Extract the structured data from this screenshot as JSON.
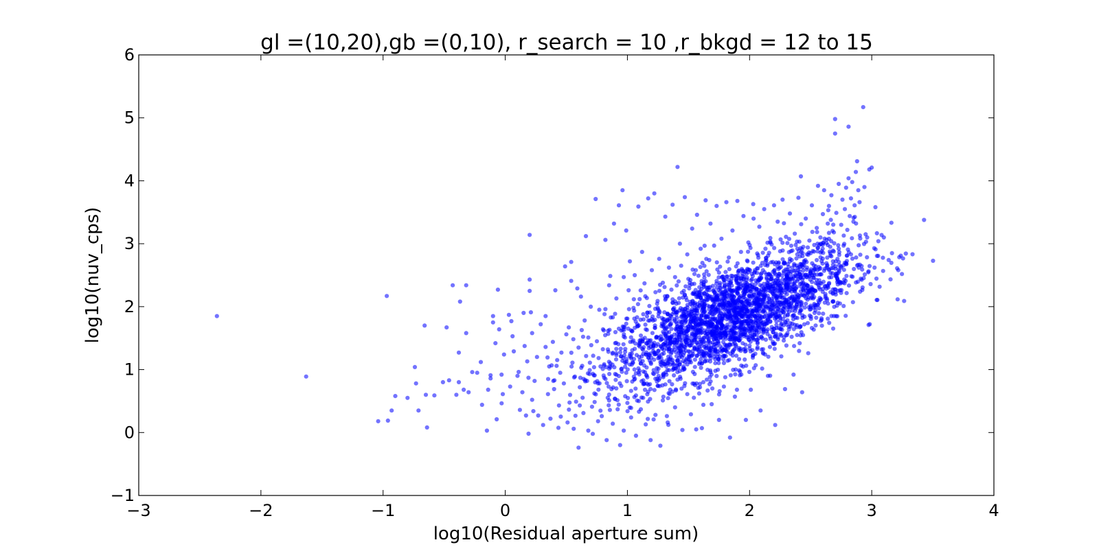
{
  "chart_data": {
    "type": "scatter",
    "title": "gl =(10,20),gb =(0,10), r_search = 10 ,r_bkgd = 12 to 15",
    "xlabel": "log10(Residual aperture sum)",
    "ylabel": "log10(nuv_cps)",
    "xlim": [
      -3,
      4
    ],
    "ylim": [
      -1,
      6
    ],
    "xticks": [
      -3,
      -2,
      -1,
      0,
      1,
      2,
      3,
      4
    ],
    "yticks": [
      -1,
      0,
      1,
      2,
      3,
      4,
      5,
      6
    ],
    "xtick_labels": [
      "−3",
      "−2",
      "−1",
      "0",
      "1",
      "2",
      "3",
      "4"
    ],
    "ytick_labels": [
      "−1",
      "0",
      "1",
      "2",
      "3",
      "4",
      "5",
      "6"
    ],
    "grid": false,
    "legend": "none",
    "marker_color": "#0000ff",
    "marker_alpha": 0.55,
    "points": [
      [
        -2.36,
        1.85
      ],
      [
        -1.63,
        0.89
      ],
      [
        -1.04,
        0.18
      ],
      [
        -0.97,
        2.17
      ],
      [
        -0.96,
        0.19
      ],
      [
        -0.93,
        0.35
      ],
      [
        -0.9,
        0.58
      ],
      [
        -0.8,
        0.55
      ],
      [
        -0.74,
        1.04
      ],
      [
        -0.73,
        0.78
      ],
      [
        -0.71,
        0.35
      ],
      [
        -0.66,
        1.7
      ],
      [
        -0.65,
        0.6
      ],
      [
        -0.64,
        0.08
      ],
      [
        -0.58,
        0.59
      ],
      [
        -0.51,
        0.8
      ],
      [
        -0.48,
        1.67
      ],
      [
        -0.46,
        0.83
      ],
      [
        -0.43,
        2.34
      ],
      [
        -0.4,
        0.6
      ],
      [
        -0.38,
        1.27
      ],
      [
        -0.38,
        0.8
      ],
      [
        -0.37,
        2.08
      ],
      [
        -0.34,
        0.68
      ],
      [
        -0.32,
        1.58
      ],
      [
        -0.32,
        2.34
      ],
      [
        -0.3,
        0.64
      ],
      [
        -0.27,
        0.96
      ],
      [
        -0.23,
        0.95
      ],
      [
        -0.2,
        1.12
      ],
      [
        -0.19,
        0.44
      ],
      [
        -0.15,
        0.03
      ],
      [
        -0.14,
        0.68
      ],
      [
        -0.12,
        0.91
      ],
      [
        -0.12,
        0.86
      ],
      [
        -0.1,
        1.85
      ],
      [
        -0.1,
        1.75
      ],
      [
        -0.08,
        1.42
      ],
      [
        -0.07,
        0.21
      ],
      [
        -0.06,
        2.27
      ],
      [
        -0.05,
        1.64
      ],
      [
        -0.03,
        0.92
      ],
      [
        -0.02,
        0.61
      ],
      [
        -0.01,
        1.24
      ],
      [
        0.03,
        1.87
      ],
      [
        0.05,
        1.77
      ],
      [
        0.04,
        0.73
      ],
      [
        0.06,
        1.53
      ],
      [
        0.07,
        1.29
      ],
      [
        0.1,
        0.9
      ],
      [
        0.12,
        0.36
      ],
      [
        0.14,
        0.64
      ],
      [
        0.15,
        1.9
      ],
      [
        0.17,
        0.27
      ],
      [
        0.18,
        1.13
      ],
      [
        0.19,
        0.87
      ],
      [
        0.2,
        3.14
      ],
      [
        0.2,
        2.43
      ],
      [
        0.2,
        2.25
      ],
      [
        0.21,
        1.91
      ],
      [
        0.22,
        1.58
      ],
      [
        0.22,
        0.52
      ],
      [
        0.23,
        0.34
      ],
      [
        0.24,
        0.82
      ],
      [
        0.26,
        1.2
      ],
      [
        0.27,
        0.27
      ],
      [
        0.29,
        1.72
      ],
      [
        0.31,
        0.12
      ],
      [
        0.33,
        1.36
      ],
      [
        0.33,
        1.85
      ],
      [
        0.35,
        0.61
      ],
      [
        0.36,
        1.05
      ],
      [
        0.37,
        0.22
      ],
      [
        0.39,
        1.44
      ],
      [
        0.4,
        0.69
      ],
      [
        0.41,
        2.26
      ],
      [
        0.42,
        1.06
      ],
      [
        0.44,
        0.43
      ],
      [
        0.45,
        0.95
      ],
      [
        0.46,
        1.27
      ],
      [
        0.48,
        0.78
      ],
      [
        0.49,
        2.64
      ],
      [
        0.5,
        1.56
      ],
      [
        0.51,
        0.16
      ],
      [
        0.52,
        1.67
      ],
      [
        0.54,
        2.41
      ],
      [
        0.54,
        2.71
      ],
      [
        0.55,
        1.11
      ],
      [
        0.56,
        0.06
      ],
      [
        0.57,
        0.89
      ],
      [
        0.58,
        0.49
      ],
      [
        0.59,
        2.29
      ],
      [
        0.6,
        1.35
      ],
      [
        0.6,
        -0.24
      ],
      [
        0.61,
        0.72
      ],
      [
        0.62,
        2.16
      ],
      [
        0.63,
        1.06
      ],
      [
        0.64,
        0.31
      ],
      [
        0.65,
        1.78
      ],
      [
        0.66,
        3.12
      ],
      [
        0.67,
        0.82
      ],
      [
        0.68,
        1.51
      ],
      [
        0.68,
        0.03
      ],
      [
        0.69,
        0.93
      ],
      [
        0.7,
        2.0
      ],
      [
        0.71,
        0.41
      ],
      [
        0.72,
        1.22
      ],
      [
        0.73,
        0.62
      ],
      [
        0.74,
        3.71
      ],
      [
        0.75,
        1.45
      ],
      [
        0.76,
        0.18
      ],
      [
        0.76,
        0.78
      ],
      [
        0.77,
        1.95
      ],
      [
        0.78,
        1.05
      ],
      [
        0.79,
        0.26
      ],
      [
        0.8,
        1.64
      ],
      [
        0.81,
        0.87
      ],
      [
        0.82,
        3.06
      ],
      [
        0.82,
        1.96
      ],
      [
        0.83,
        -0.12
      ],
      [
        0.84,
        1.32
      ],
      [
        0.85,
        0.51
      ],
      [
        0.85,
        2.34
      ],
      [
        0.86,
        1.1
      ],
      [
        0.87,
        0.69
      ],
      [
        0.88,
        1.83
      ],
      [
        0.88,
        0.14
      ],
      [
        0.89,
        3.32
      ],
      [
        0.9,
        1.42
      ],
      [
        0.9,
        0.93
      ],
      [
        0.91,
        2.13
      ],
      [
        0.92,
        0.37
      ],
      [
        0.93,
        1.65
      ],
      [
        0.93,
        3.61
      ],
      [
        0.94,
        -0.2
      ],
      [
        0.95,
        1.21
      ],
      [
        0.95,
        0.74
      ],
      [
        0.96,
        3.85
      ],
      [
        0.97,
        2.47
      ],
      [
        0.97,
        0.03
      ],
      [
        0.98,
        1.51
      ],
      [
        0.99,
        0.95
      ],
      [
        0.99,
        3.21
      ],
      [
        1.0,
        1.81
      ],
      [
        1.0,
        0.47
      ],
      [
        1.01,
        2.26
      ],
      [
        1.02,
        1.08
      ],
      [
        1.02,
        2.72
      ],
      [
        1.03,
        0.24
      ],
      [
        1.04,
        1.61
      ],
      [
        1.04,
        0.81
      ],
      [
        1.05,
        1.98
      ],
      [
        1.06,
        1.33
      ],
      [
        1.06,
        2.5
      ],
      [
        1.07,
        -0.05
      ],
      [
        1.07,
        0.59
      ],
      [
        1.08,
        1.72
      ],
      [
        1.09,
        3.59
      ],
      [
        1.09,
        1.02
      ],
      [
        1.1,
        2.12
      ],
      [
        1.11,
        0.37
      ],
      [
        1.11,
        1.47
      ],
      [
        1.12,
        2.87
      ],
      [
        1.13,
        0.83
      ],
      [
        1.13,
        1.88
      ],
      [
        1.14,
        2.37
      ],
      [
        1.15,
        0.13
      ],
      [
        1.15,
        1.24
      ],
      [
        1.16,
        1.63
      ],
      [
        1.17,
        0.65
      ],
      [
        1.17,
        3.72
      ],
      [
        1.18,
        2.01
      ],
      [
        1.19,
        -0.12
      ],
      [
        1.19,
        1.36
      ],
      [
        1.2,
        2.58
      ],
      [
        1.21,
        0.94
      ],
      [
        1.21,
        1.78
      ],
      [
        1.22,
        3.8
      ],
      [
        1.23,
        0.28
      ],
      [
        1.23,
        2.23
      ],
      [
        1.24,
        1.52
      ],
      [
        1.25,
        0.74
      ],
      [
        1.25,
        1.96
      ],
      [
        1.26,
        2.76
      ],
      [
        1.27,
        1.12
      ],
      [
        1.27,
        -0.21
      ],
      [
        1.28,
        1.69
      ],
      [
        1.29,
        2.38
      ],
      [
        1.29,
        0.51
      ],
      [
        1.3,
        1.31
      ],
      [
        1.31,
        3.43
      ],
      [
        1.31,
        2.11
      ],
      [
        1.32,
        0.92
      ],
      [
        1.33,
        1.8
      ],
      [
        1.33,
        0.16
      ],
      [
        1.34,
        2.62
      ],
      [
        1.35,
        1.46
      ],
      [
        1.35,
        0.68
      ],
      [
        1.36,
        2.27
      ],
      [
        1.37,
        3.62
      ],
      [
        1.37,
        1.15
      ],
      [
        1.38,
        1.91
      ],
      [
        1.39,
        0.4
      ],
      [
        1.39,
        2.47
      ],
      [
        1.4,
        1.63
      ],
      [
        1.41,
        4.22
      ],
      [
        1.41,
        0.84
      ],
      [
        1.42,
        2.06
      ],
      [
        1.43,
        1.29
      ],
      [
        1.43,
        3.0
      ],
      [
        1.44,
        2.65
      ],
      [
        1.45,
        0.04
      ],
      [
        1.45,
        1.76
      ],
      [
        1.46,
        1.05
      ],
      [
        1.47,
        3.74
      ],
      [
        1.47,
        2.19
      ],
      [
        1.48,
        1.48
      ],
      [
        1.49,
        0.61
      ],
      [
        1.49,
        2.83
      ],
      [
        1.5,
        1.9
      ],
      [
        1.51,
        1.21
      ],
      [
        1.51,
        2.38
      ],
      [
        1.52,
        0.29
      ],
      [
        1.53,
        1.67
      ],
      [
        1.53,
        3.24
      ],
      [
        1.54,
        2.05
      ],
      [
        1.55,
        0.93
      ],
      [
        1.55,
        1.54
      ],
      [
        1.56,
        2.58
      ],
      [
        1.57,
        1.33
      ],
      [
        1.57,
        3.46
      ],
      [
        1.58,
        0.71
      ],
      [
        1.59,
        2.22
      ],
      [
        1.59,
        1.81
      ],
      [
        1.6,
        2.92
      ],
      [
        1.61,
        1.1
      ],
      [
        1.61,
        0.07
      ],
      [
        1.62,
        1.97
      ],
      [
        1.63,
        2.46
      ],
      [
        1.63,
        1.44
      ],
      [
        1.64,
        3.69
      ],
      [
        1.65,
        0.84
      ],
      [
        1.65,
        2.1
      ],
      [
        1.66,
        1.65
      ],
      [
        1.67,
        2.74
      ],
      [
        1.67,
        1.22
      ],
      [
        1.68,
        3.32
      ],
      [
        1.69,
        0.45
      ],
      [
        1.69,
        1.89
      ],
      [
        1.7,
        2.33
      ],
      [
        1.71,
        1.55
      ],
      [
        1.71,
        2.97
      ],
      [
        1.72,
        0.98
      ],
      [
        1.73,
        2.14
      ],
      [
        1.73,
        3.6
      ],
      [
        1.74,
        1.73
      ],
      [
        1.75,
        2.54
      ],
      [
        1.75,
        0.2
      ],
      [
        1.76,
        1.37
      ],
      [
        1.77,
        2.03
      ],
      [
        1.77,
        3.08
      ],
      [
        1.78,
        1.85
      ],
      [
        1.79,
        0.73
      ],
      [
        1.79,
        2.42
      ],
      [
        1.8,
        1.58
      ],
      [
        1.81,
        3.66
      ],
      [
        1.81,
        2.21
      ],
      [
        1.82,
        1.14
      ],
      [
        1.83,
        2.78
      ],
      [
        1.83,
        1.94
      ],
      [
        1.84,
        -0.08
      ],
      [
        1.85,
        1.69
      ],
      [
        1.85,
        2.49
      ],
      [
        1.86,
        3.21
      ],
      [
        1.87,
        1.31
      ],
      [
        1.87,
        2.08
      ],
      [
        1.88,
        0.57
      ],
      [
        1.89,
        1.82
      ],
      [
        1.89,
        2.64
      ],
      [
        1.9,
        3.68
      ],
      [
        1.91,
        1.49
      ],
      [
        1.91,
        2.29
      ],
      [
        1.92,
        0.91
      ],
      [
        1.93,
        1.98
      ],
      [
        1.93,
        2.87
      ],
      [
        1.94,
        1.62
      ],
      [
        1.95,
        2.44
      ],
      [
        1.95,
        3.44
      ],
      [
        1.96,
        1.16
      ],
      [
        1.97,
        2.12
      ],
      [
        1.97,
        0.2
      ],
      [
        1.98,
        1.77
      ],
      [
        1.99,
        2.55
      ],
      [
        1.99,
        3.02
      ],
      [
        2.0,
        1.38
      ],
      [
        2.01,
        2.24
      ],
      [
        2.01,
        0.68
      ],
      [
        2.02,
        1.91
      ],
      [
        2.03,
        2.7
      ],
      [
        2.03,
        3.63
      ],
      [
        2.04,
        1.55
      ],
      [
        2.05,
        2.36
      ],
      [
        2.05,
        1.07
      ],
      [
        2.06,
        2.05
      ],
      [
        2.07,
        2.82
      ],
      [
        2.07,
        1.69
      ],
      [
        2.08,
        3.27
      ],
      [
        2.09,
        2.18
      ],
      [
        2.09,
        0.35
      ],
      [
        2.1,
        1.84
      ],
      [
        2.11,
        2.58
      ],
      [
        2.11,
        1.27
      ],
      [
        2.12,
        3.55
      ],
      [
        2.13,
        2.0
      ],
      [
        2.13,
        2.92
      ],
      [
        2.14,
        1.61
      ],
      [
        2.15,
        2.31
      ],
      [
        2.15,
        0.9
      ],
      [
        2.16,
        2.12
      ],
      [
        2.17,
        3.09
      ],
      [
        2.17,
        1.76
      ],
      [
        2.18,
        2.48
      ],
      [
        2.19,
        2.71
      ],
      [
        2.19,
        1.44
      ],
      [
        2.2,
        3.61
      ],
      [
        2.21,
        2.22
      ],
      [
        2.21,
        0.12
      ],
      [
        2.22,
        1.92
      ],
      [
        2.23,
        2.63
      ],
      [
        2.23,
        3.35
      ],
      [
        2.24,
        1.66
      ],
      [
        2.25,
        2.38
      ],
      [
        2.25,
        2.88
      ],
      [
        2.26,
        1.21
      ],
      [
        2.27,
        2.14
      ],
      [
        2.27,
        3.7
      ],
      [
        2.28,
        2.54
      ],
      [
        2.29,
        1.85
      ],
      [
        2.29,
        0.69
      ],
      [
        2.3,
        2.3
      ],
      [
        2.31,
        3.01
      ],
      [
        2.31,
        1.58
      ],
      [
        2.32,
        2.46
      ],
      [
        2.33,
        2.76
      ],
      [
        2.33,
        3.48
      ],
      [
        2.34,
        2.05
      ],
      [
        2.35,
        1.73
      ],
      [
        2.35,
        2.62
      ],
      [
        2.36,
        0.92
      ],
      [
        2.37,
        2.25
      ],
      [
        2.37,
        3.16
      ],
      [
        2.38,
        1.97
      ],
      [
        2.39,
        2.83
      ],
      [
        2.39,
        2.41
      ],
      [
        2.4,
        3.73
      ],
      [
        2.41,
        1.42
      ],
      [
        2.41,
        2.56
      ],
      [
        2.42,
        4.07
      ],
      [
        2.43,
        2.19
      ],
      [
        2.43,
        0.64
      ],
      [
        2.44,
        2.95
      ],
      [
        2.45,
        2.71
      ],
      [
        2.45,
        1.84
      ],
      [
        2.46,
        3.4
      ],
      [
        2.47,
        2.34
      ],
      [
        2.47,
        2.62
      ],
      [
        2.48,
        1.26
      ],
      [
        2.49,
        3.05
      ],
      [
        2.49,
        2.48
      ],
      [
        2.5,
        2.85
      ],
      [
        2.51,
        1.66
      ],
      [
        2.51,
        3.61
      ],
      [
        2.52,
        2.27
      ],
      [
        2.53,
        2.98
      ],
      [
        2.53,
        2.6
      ],
      [
        2.54,
        1.94
      ],
      [
        2.55,
        3.25
      ],
      [
        2.55,
        2.74
      ],
      [
        2.56,
        3.92
      ],
      [
        2.57,
        2.42
      ],
      [
        2.57,
        2.07
      ],
      [
        2.58,
        3.1
      ],
      [
        2.59,
        2.88
      ],
      [
        2.59,
        1.79
      ],
      [
        2.6,
        3.47
      ],
      [
        2.61,
        2.57
      ],
      [
        2.61,
        3.85
      ],
      [
        2.62,
        2.2
      ],
      [
        2.63,
        3.01
      ],
      [
        2.63,
        2.69
      ],
      [
        2.64,
        3.32
      ],
      [
        2.65,
        2.36
      ],
      [
        2.65,
        3.6
      ],
      [
        2.66,
        2.95
      ],
      [
        2.67,
        2.8
      ],
      [
        2.67,
        3.77
      ],
      [
        2.68,
        2.08
      ],
      [
        2.69,
        3.18
      ],
      [
        2.7,
        4.98
      ],
      [
        2.7,
        4.75
      ],
      [
        2.71,
        2.48
      ],
      [
        2.71,
        3.49
      ],
      [
        2.72,
        2.76
      ],
      [
        2.73,
        3.95
      ],
      [
        2.73,
        2.92
      ],
      [
        2.74,
        2.05
      ],
      [
        2.75,
        3.3
      ],
      [
        2.75,
        2.62
      ],
      [
        2.76,
        3.7
      ],
      [
        2.77,
        2.01
      ],
      [
        2.77,
        2.97
      ],
      [
        2.78,
        3.55
      ],
      [
        2.79,
        3.89
      ],
      [
        2.79,
        2.68
      ],
      [
        2.8,
        3.22
      ],
      [
        2.81,
        4.04
      ],
      [
        2.81,
        4.86
      ],
      [
        2.82,
        3.44
      ],
      [
        2.83,
        2.83
      ],
      [
        2.83,
        3.72
      ],
      [
        2.84,
        3.98
      ],
      [
        2.85,
        3.35
      ],
      [
        2.86,
        3.61
      ],
      [
        2.87,
        4.14
      ],
      [
        2.88,
        4.31
      ],
      [
        2.89,
        3.85
      ],
      [
        2.9,
        3.66
      ],
      [
        2.93,
        5.17
      ],
      [
        2.94,
        3.9
      ],
      [
        2.95,
        3.15
      ],
      [
        2.98,
        4.18
      ],
      [
        3.0,
        4.21
      ],
      [
        3.03,
        3.58
      ]
    ],
    "cluster": {
      "n": 2600,
      "mean_x": 1.85,
      "mean_y": 1.85,
      "sd_x": 0.5,
      "sd_y": 0.55,
      "correlation": 0.7
    }
  }
}
